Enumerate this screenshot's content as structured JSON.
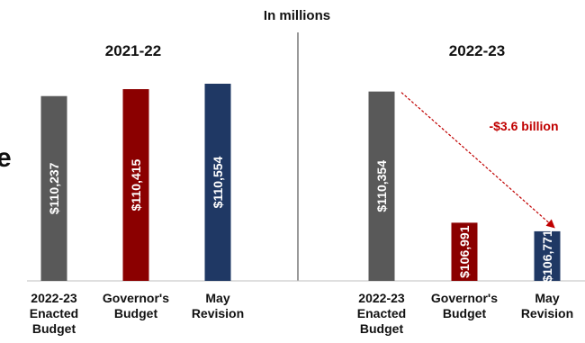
{
  "chart_title": "In millions",
  "left_edge_fragment": "e",
  "annotation": {
    "text": "-$3.6 billion",
    "color": "#c00000"
  },
  "chart_data": [
    {
      "type": "bar",
      "title": "2021-22",
      "categories": [
        "2022-23\nEnacted\nBudget",
        "Governor's\nBudget",
        "May\nRevision"
      ],
      "values": [
        110237,
        110415,
        110554
      ],
      "value_labels": [
        "$110,237",
        "$110,415",
        "$110,554"
      ],
      "colors": [
        "#595959",
        "#8b0000",
        "#1f3864"
      ]
    },
    {
      "type": "bar",
      "title": "2022-23",
      "categories": [
        "2022-23\nEnacted\nBudget",
        "Governor's\nBudget",
        "May\nRevision"
      ],
      "values": [
        110354,
        106991,
        106771
      ],
      "value_labels": [
        "$110,354",
        "$106,991",
        "$106,771"
      ],
      "colors": [
        "#595959",
        "#8b0000",
        "#1f3864"
      ]
    }
  ]
}
